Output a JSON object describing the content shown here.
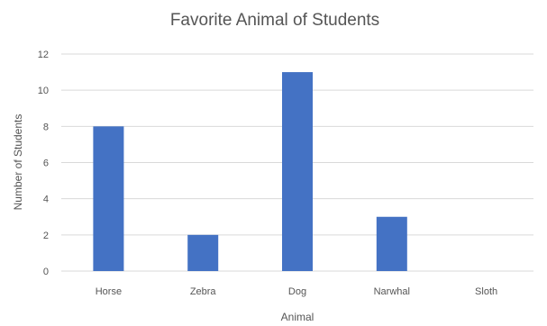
{
  "chart_data": {
    "type": "bar",
    "title": "Favorite Animal of Students",
    "xlabel": "Animal",
    "ylabel": "Number of Students",
    "categories": [
      "Horse",
      "Zebra",
      "Dog",
      "Narwhal",
      "Sloth"
    ],
    "values": [
      8,
      2,
      11,
      3,
      0
    ],
    "ylim": [
      0,
      12
    ],
    "yticks": [
      "0",
      "2",
      "4",
      "6",
      "8",
      "10",
      "12"
    ],
    "grid": true,
    "legend": "none",
    "bar_color": "#4472c4",
    "grid_color": "#d9d9d9",
    "text_color": "#555555"
  }
}
